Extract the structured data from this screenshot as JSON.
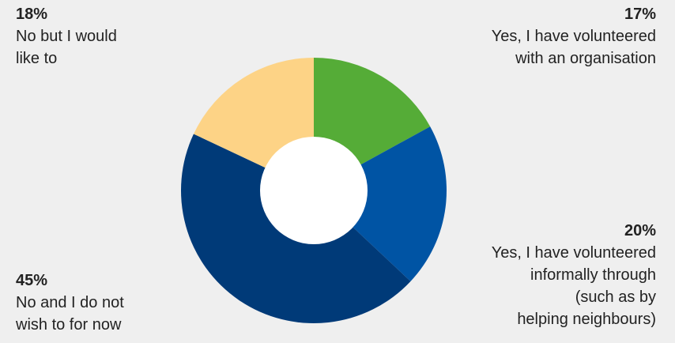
{
  "chart_data": {
    "type": "pie",
    "donut": true,
    "title": "",
    "slices": [
      {
        "value": 17,
        "percent_label": "17%",
        "label_lines": [
          "Yes, I have volunteered",
          "with an organisation"
        ],
        "color": "#55ac37"
      },
      {
        "value": 20,
        "percent_label": "20%",
        "label_lines": [
          "Yes, I have volunteered",
          "informally through",
          "(such as by",
          "helping neighbours)"
        ],
        "color": "#0054a4"
      },
      {
        "value": 45,
        "percent_label": "45%",
        "label_lines": [
          "No and I do not",
          "wish to for now"
        ],
        "color": "#003a78"
      },
      {
        "value": 18,
        "percent_label": "18%",
        "label_lines": [
          "No but I would",
          "like to"
        ],
        "color": "#fdd386"
      }
    ],
    "hole_color": "#ffffff",
    "background": "#efefef",
    "start": "top",
    "direction": "clockwise"
  }
}
